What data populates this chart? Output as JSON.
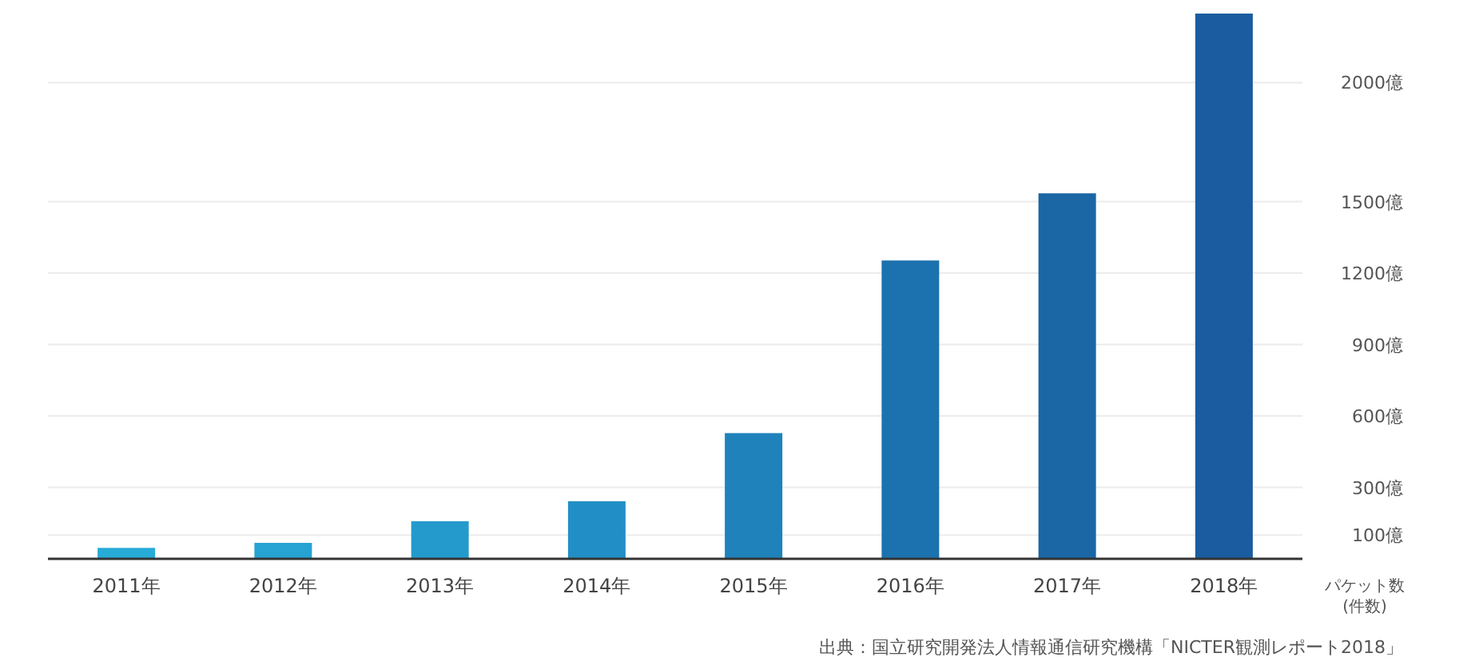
{
  "chart_data": {
    "type": "bar",
    "categories": [
      "2011年",
      "2012年",
      "2013年",
      "2014年",
      "2015年",
      "2016年",
      "2017年",
      "2018年"
    ],
    "values": [
      46,
      67,
      158,
      242,
      528,
      1253,
      1535,
      2290
    ],
    "colors": [
      "#27abd7",
      "#26a3d2",
      "#249acc",
      "#218fc5",
      "#1f82bb",
      "#1c72ae",
      "#1b66a5",
      "#1a5c9f"
    ],
    "ylim": [
      0,
      2300
    ],
    "yticks": [
      {
        "value": 100,
        "label": "100億"
      },
      {
        "value": 300,
        "label": "300億"
      },
      {
        "value": 600,
        "label": "600億"
      },
      {
        "value": 900,
        "label": "900億"
      },
      {
        "value": 1200,
        "label": "1200億"
      },
      {
        "value": 1500,
        "label": "1500億"
      },
      {
        "value": 2000,
        "label": "2000億"
      }
    ],
    "ylabel": "パケット数\n(件数)",
    "grid": "y",
    "annotations": [
      "出典：国立研究開発法人情報通信研究機構「NICTER観測レポート2018」"
    ]
  }
}
